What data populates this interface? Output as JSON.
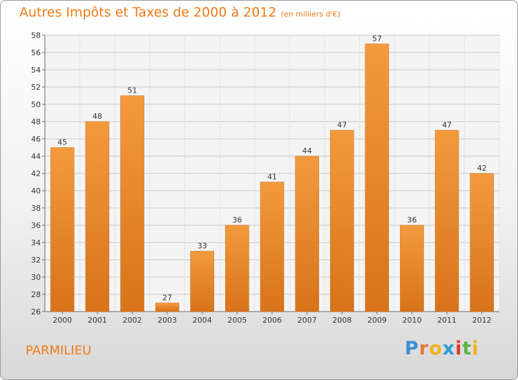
{
  "chart_data": {
    "type": "bar",
    "title": "Autres Impôts et Taxes de 2000 à 2012",
    "subtitle": "(en milliers d'€)",
    "categories": [
      "2000",
      "2001",
      "2002",
      "2003",
      "2004",
      "2005",
      "2006",
      "2007",
      "2008",
      "2009",
      "2010",
      "2011",
      "2012"
    ],
    "values": [
      45,
      48,
      51,
      27,
      33,
      36,
      41,
      44,
      47,
      57,
      36,
      47,
      42
    ],
    "ylim": [
      26,
      58
    ],
    "yticks": [
      26,
      28,
      30,
      32,
      34,
      36,
      38,
      40,
      42,
      44,
      46,
      48,
      50,
      52,
      54,
      56,
      58
    ],
    "grid": true,
    "bar_color": "#f39a3e",
    "bar_color_dark": "#d8731a"
  },
  "footer": {
    "commune": "PARMILIEU",
    "brand": {
      "letters": [
        "P",
        "r",
        "o",
        "x",
        "i",
        "t",
        "i"
      ],
      "colors": [
        "#3a8fd3",
        "#e8743a",
        "#f0b21d",
        "#2f9bd6",
        "#d9352b",
        "#5cb33c",
        "#f0b21d"
      ]
    }
  }
}
